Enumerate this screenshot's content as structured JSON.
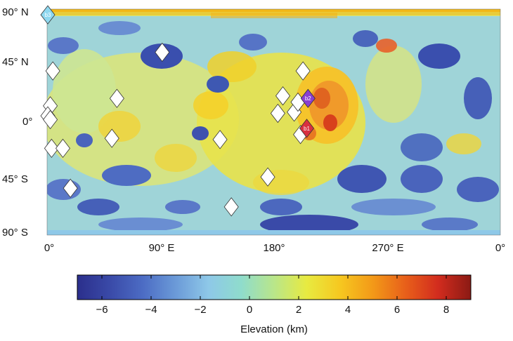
{
  "map": {
    "lat_labels": [
      "90° N",
      "45° N",
      "0°",
      "45° S",
      "90° S"
    ],
    "lat_values": [
      90,
      45,
      0,
      -45,
      -90
    ],
    "lon_labels": [
      "0°",
      "90° E",
      "180°",
      "270° E",
      "0°"
    ],
    "lon_values": [
      0,
      90,
      180,
      270,
      360
    ],
    "markers": [
      {
        "lon": 0,
        "lat": 86,
        "label": "b3",
        "color": "#8fd8f0"
      },
      {
        "lon": 4,
        "lat": 41,
        "label": "",
        "color": "#ffffff"
      },
      {
        "lon": 2,
        "lat": 13,
        "label": "",
        "color": "#ffffff"
      },
      {
        "lon": 0,
        "lat": 5,
        "label": "",
        "color": "#ffffff"
      },
      {
        "lon": 2,
        "lat": 2,
        "label": "",
        "color": "#ffffff"
      },
      {
        "lon": 3,
        "lat": -21,
        "label": "",
        "color": "#ffffff"
      },
      {
        "lon": 12,
        "lat": -21,
        "label": "",
        "color": "#ffffff"
      },
      {
        "lon": 18,
        "lat": -53,
        "label": "",
        "color": "#ffffff"
      },
      {
        "lon": 55,
        "lat": 19,
        "label": "",
        "color": "#ffffff"
      },
      {
        "lon": 51,
        "lat": -13,
        "label": "",
        "color": "#ffffff"
      },
      {
        "lon": 91,
        "lat": 56,
        "label": "",
        "color": "#ffffff"
      },
      {
        "lon": 137,
        "lat": -14,
        "label": "",
        "color": "#ffffff"
      },
      {
        "lon": 146,
        "lat": -68,
        "label": "",
        "color": "#ffffff"
      },
      {
        "lon": 175,
        "lat": -44,
        "label": "",
        "color": "#ffffff"
      },
      {
        "lon": 183,
        "lat": 7,
        "label": "",
        "color": "#ffffff"
      },
      {
        "lon": 187,
        "lat": 21,
        "label": "",
        "color": "#ffffff"
      },
      {
        "lon": 196,
        "lat": 8,
        "label": "",
        "color": "#ffffff"
      },
      {
        "lon": 199,
        "lat": 16,
        "label": "",
        "color": "#ffffff"
      },
      {
        "lon": 201,
        "lat": -10,
        "label": "",
        "color": "#ffffff"
      },
      {
        "lon": 203,
        "lat": 41,
        "label": "",
        "color": "#ffffff"
      },
      {
        "lon": 207,
        "lat": 19,
        "label": "b2",
        "color": "#8a3fd0"
      },
      {
        "lon": 206,
        "lat": -5,
        "label": "b1",
        "color": "#d83040"
      }
    ]
  },
  "colorbar": {
    "title": "Elevation (km)",
    "min": -7,
    "max": 9,
    "ticks": [
      -6,
      -4,
      -2,
      0,
      2,
      4,
      6,
      8
    ],
    "tick_labels": [
      "−6",
      "−4",
      "−2",
      "0",
      "2",
      "4",
      "6",
      "8"
    ],
    "colors": [
      "#2b2f8c",
      "#3a4aa8",
      "#4c6cc4",
      "#6b9ad8",
      "#8ec8e8",
      "#8fdccc",
      "#b9e68a",
      "#e8ea40",
      "#f6c820",
      "#f39a18",
      "#e8601a",
      "#d22c1e",
      "#8b1a14"
    ]
  }
}
